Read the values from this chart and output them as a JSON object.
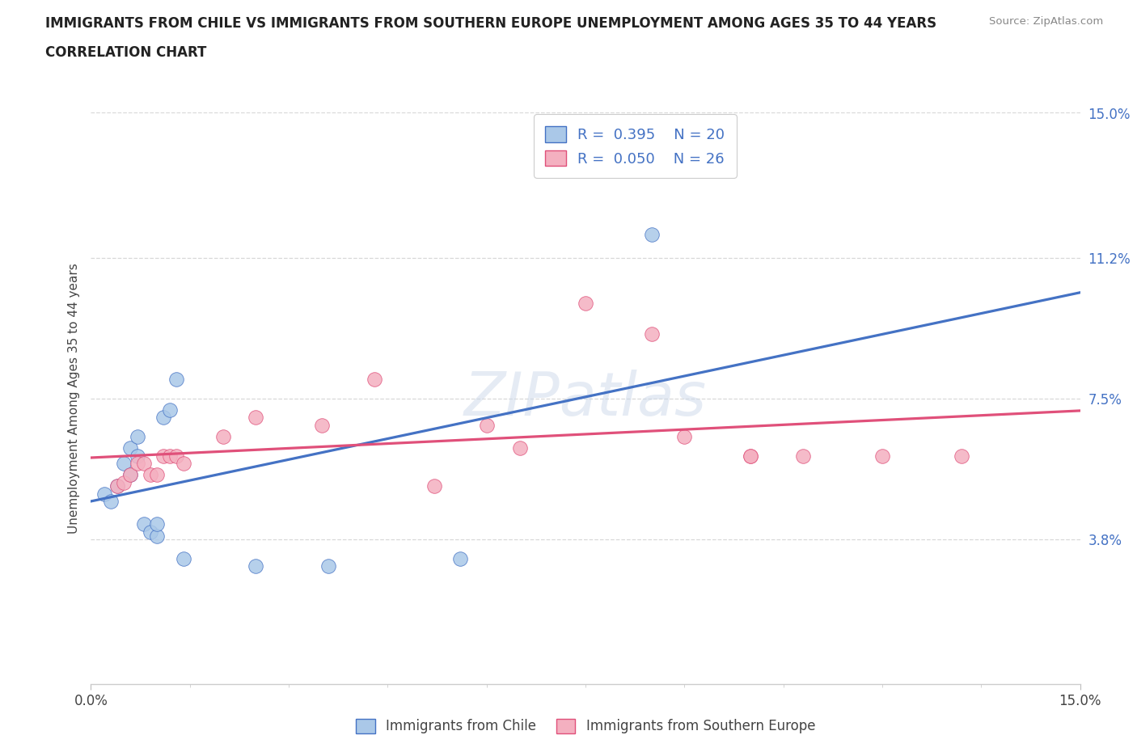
{
  "title_line1": "IMMIGRANTS FROM CHILE VS IMMIGRANTS FROM SOUTHERN EUROPE UNEMPLOYMENT AMONG AGES 35 TO 44 YEARS",
  "title_line2": "CORRELATION CHART",
  "source_text": "Source: ZipAtlas.com",
  "ylabel": "Unemployment Among Ages 35 to 44 years",
  "xlim": [
    0.0,
    0.15
  ],
  "ylim": [
    0.0,
    0.15
  ],
  "ytick_values": [
    0.038,
    0.075,
    0.112,
    0.15
  ],
  "ytick_labels": [
    "3.8%",
    "7.5%",
    "11.2%",
    "15.0%"
  ],
  "watermark": "ZIPatlas",
  "chile_R": 0.395,
  "chile_N": 20,
  "s_europe_R": 0.05,
  "s_europe_N": 26,
  "chile_color": "#aac8e8",
  "chile_line_color": "#4472c4",
  "s_europe_color": "#f4b0c0",
  "s_europe_line_color": "#e0507a",
  "legend_text_color": "#4472c4",
  "background_color": "#ffffff",
  "grid_color": "#d8d8d8",
  "chile_legend": "Immigrants from Chile",
  "se_legend": "Immigrants from Southern Europe",
  "chile_x": [
    0.002,
    0.003,
    0.004,
    0.005,
    0.006,
    0.006,
    0.007,
    0.007,
    0.008,
    0.009,
    0.01,
    0.01,
    0.011,
    0.012,
    0.013,
    0.014,
    0.025,
    0.036,
    0.056,
    0.085
  ],
  "chile_y": [
    0.05,
    0.048,
    0.052,
    0.058,
    0.062,
    0.055,
    0.06,
    0.065,
    0.042,
    0.04,
    0.039,
    0.042,
    0.07,
    0.072,
    0.08,
    0.033,
    0.031,
    0.031,
    0.033,
    0.118
  ],
  "s_europe_x": [
    0.004,
    0.005,
    0.006,
    0.007,
    0.008,
    0.009,
    0.01,
    0.011,
    0.012,
    0.013,
    0.014,
    0.02,
    0.025,
    0.035,
    0.043,
    0.052,
    0.06,
    0.065,
    0.075,
    0.085,
    0.09,
    0.1,
    0.1,
    0.108,
    0.12,
    0.132
  ],
  "s_europe_y": [
    0.052,
    0.053,
    0.055,
    0.058,
    0.058,
    0.055,
    0.055,
    0.06,
    0.06,
    0.06,
    0.058,
    0.065,
    0.07,
    0.068,
    0.08,
    0.052,
    0.068,
    0.062,
    0.1,
    0.092,
    0.065,
    0.06,
    0.06,
    0.06,
    0.06,
    0.06
  ]
}
